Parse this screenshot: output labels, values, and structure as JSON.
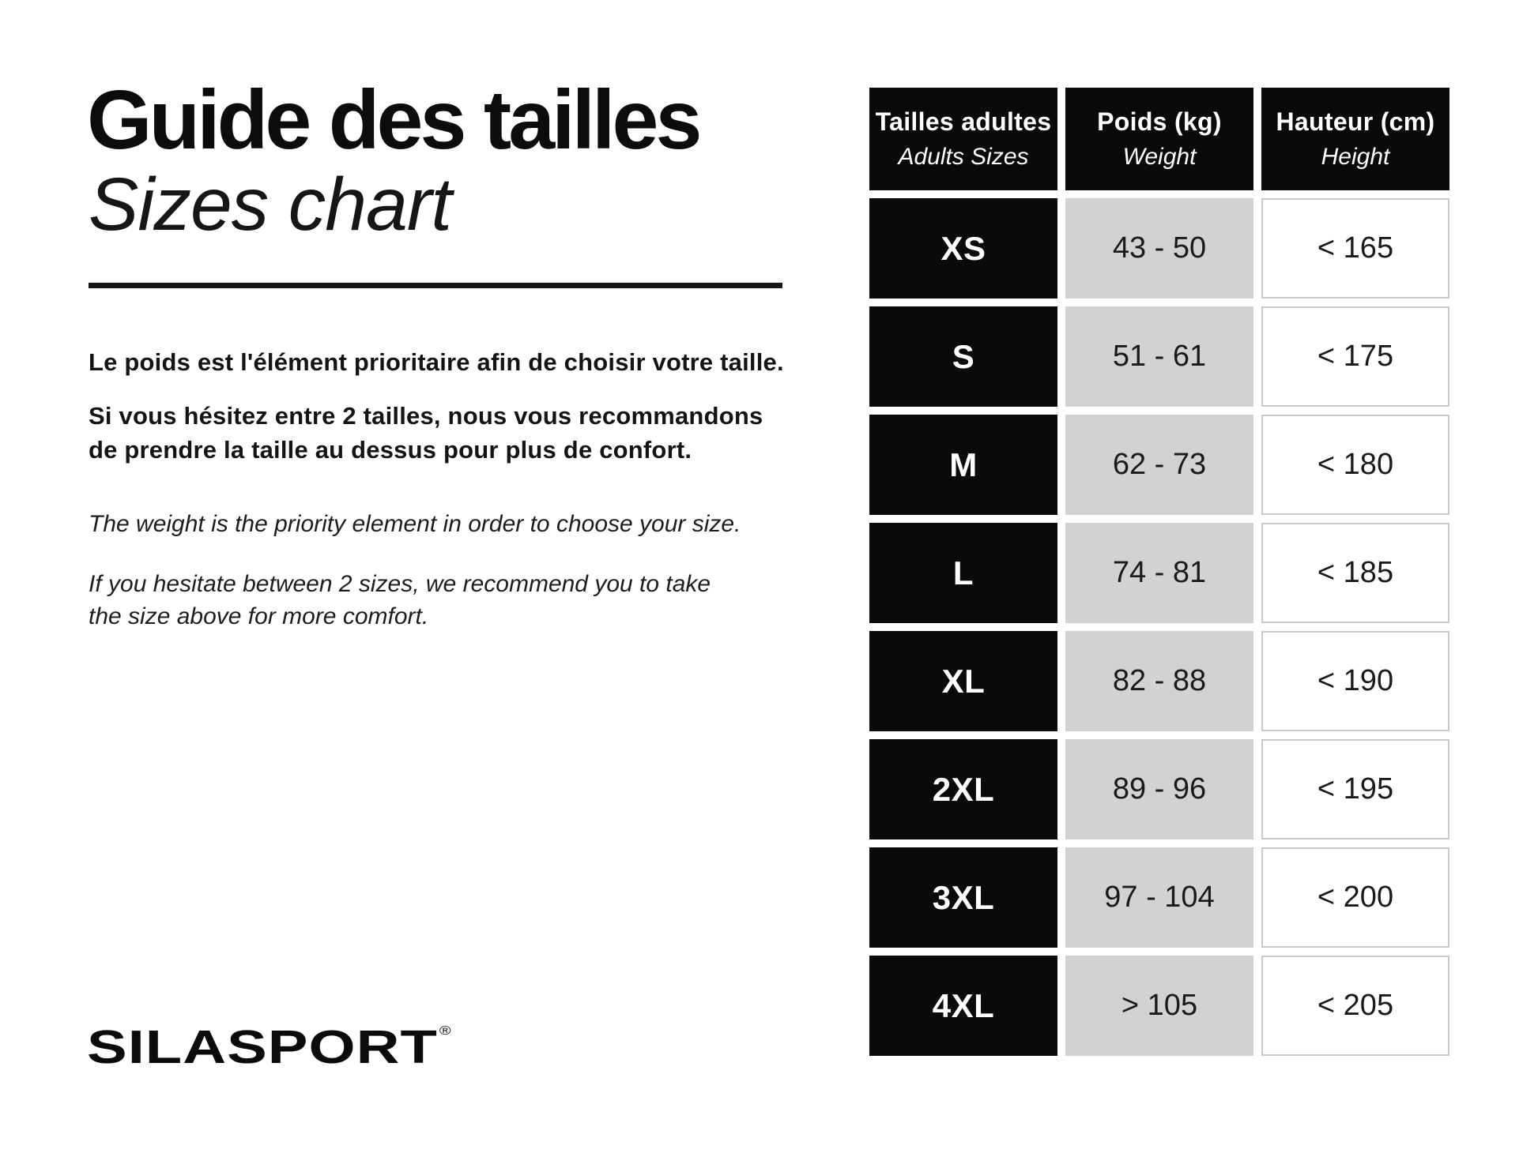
{
  "colors": {
    "background": "#ffffff",
    "text": "#111111",
    "cell_black_bg": "#0a0a0a",
    "cell_black_text": "#ffffff",
    "cell_gray_bg": "#d2d2d2",
    "cell_white_border": "#c8c8c8",
    "rule": "#161616"
  },
  "header": {
    "title_fr": "Guide des tailles",
    "title_en": "Sizes chart"
  },
  "intro": {
    "fr_line1": "Le poids est l'élément prioritaire afin de choisir votre taille.",
    "fr_line2": "Si vous hésitez entre 2 tailles, nous vous recommandons\nde prendre la taille au dessus pour plus de confort.",
    "en_line1": "The weight is the priority element in order to choose your size.",
    "en_line2": "If you hesitate between 2 sizes, we recommend you to take\nthe size above for more comfort."
  },
  "brand": {
    "logo_text": "SILASPORT",
    "registered_mark": "®"
  },
  "size_table": {
    "columns": [
      {
        "label_fr": "Tailles adultes",
        "label_en": "Adults Sizes"
      },
      {
        "label_fr": "Poids (kg)",
        "label_en": "Weight"
      },
      {
        "label_fr": "Hauteur (cm)",
        "label_en": "Height"
      }
    ],
    "rows": [
      {
        "size": "XS",
        "weight_kg": "43 - 50",
        "height_cm": "< 165"
      },
      {
        "size": "S",
        "weight_kg": "51 - 61",
        "height_cm": "< 175"
      },
      {
        "size": "M",
        "weight_kg": "62 - 73",
        "height_cm": "< 180"
      },
      {
        "size": "L",
        "weight_kg": "74 - 81",
        "height_cm": "< 185"
      },
      {
        "size": "XL",
        "weight_kg": "82 - 88",
        "height_cm": "< 190"
      },
      {
        "size": "2XL",
        "weight_kg": "89 - 96",
        "height_cm": "< 195"
      },
      {
        "size": "3XL",
        "weight_kg": "97 - 104",
        "height_cm": "< 200"
      },
      {
        "size": "4XL",
        "weight_kg": "> 105",
        "height_cm": "< 205"
      }
    ]
  }
}
